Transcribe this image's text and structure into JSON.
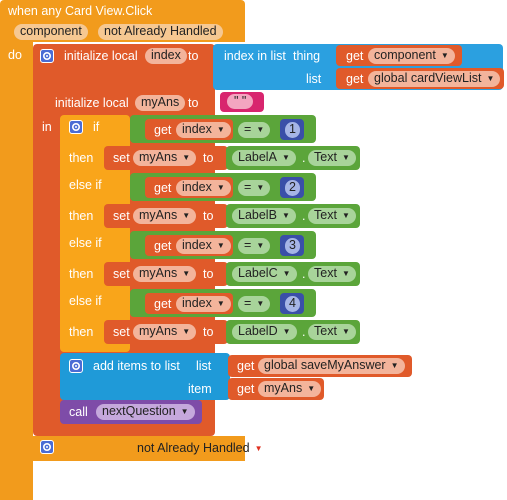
{
  "event": {
    "title": "when any Card View.Click",
    "param1": "component",
    "param2": "not Already Handled",
    "do": "do"
  },
  "local_index": {
    "label": "initialize local",
    "var": "index",
    "to": "to",
    "index_in_list": "index in list",
    "thing": "thing",
    "list": "list",
    "get": "get",
    "thing_value": "component",
    "list_value": "global cardViewList"
  },
  "local_myans": {
    "label": "initialize local",
    "var": "myAns",
    "to": "to",
    "string_value": "\" \"",
    "in": "in"
  },
  "if_block": {
    "if": "if",
    "then": "then",
    "else_if": "else if",
    "get": "get",
    "index": "index",
    "eq": "=",
    "set": "set",
    "myAns": "myAns",
    "to": "to",
    "dot": ".",
    "text_prop": "Text",
    "branches": [
      {
        "number": "1",
        "label_comp": "LabelA"
      },
      {
        "number": "2",
        "label_comp": "LabelB"
      },
      {
        "number": "3",
        "label_comp": "LabelC"
      },
      {
        "number": "4",
        "label_comp": "LabelD"
      }
    ]
  },
  "add_items": {
    "label": "add items to list",
    "list": "list",
    "item": "item",
    "get": "get",
    "list_value": "global saveMyAnswer",
    "item_value": "myAns"
  },
  "call": {
    "label": "call",
    "proc": "nextQuestion"
  },
  "bottom": {
    "value": "not Already Handled"
  }
}
